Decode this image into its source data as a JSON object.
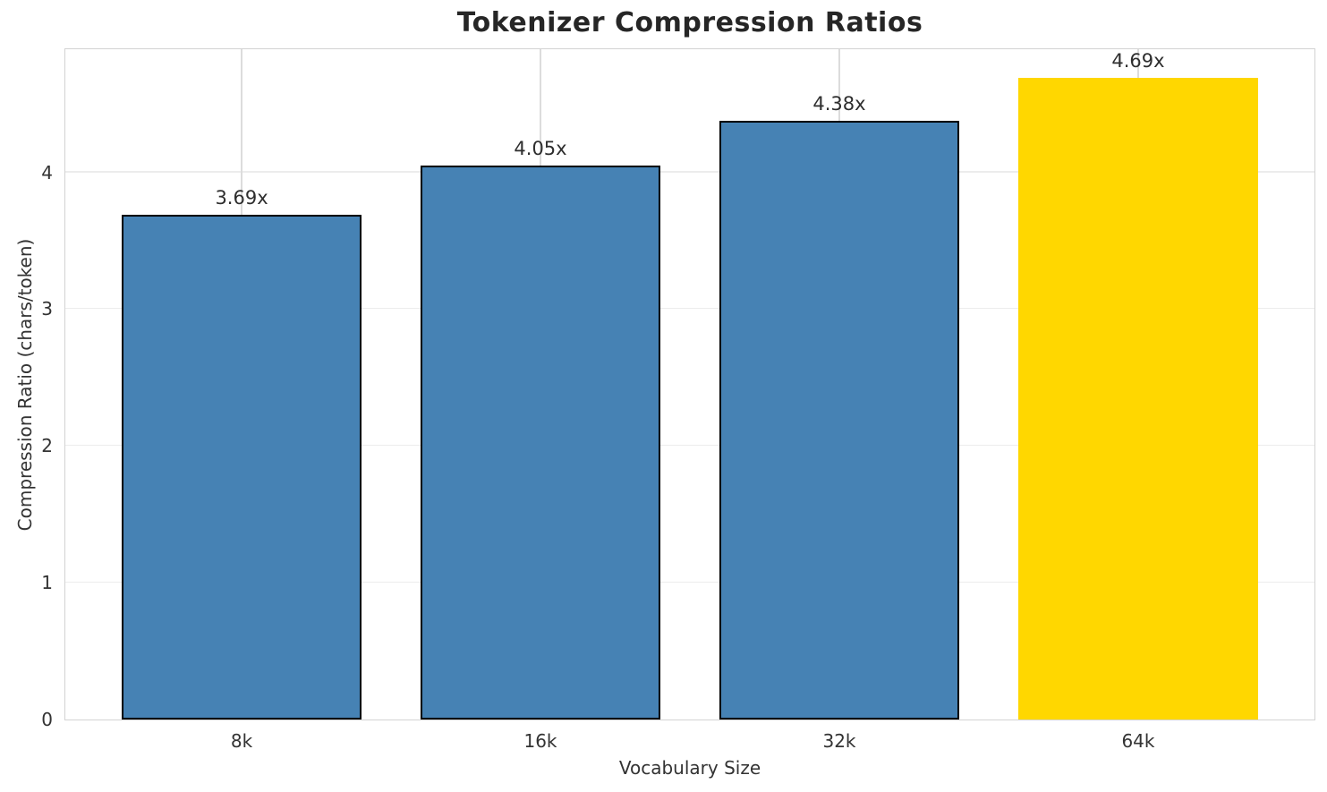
{
  "chart_data": {
    "type": "bar",
    "title": "Tokenizer Compression Ratios",
    "xlabel": "Vocabulary Size",
    "ylabel": "Compression Ratio (chars/token)",
    "categories": [
      "8k",
      "16k",
      "32k",
      "64k"
    ],
    "values": [
      3.69,
      4.05,
      4.38,
      4.69
    ],
    "bar_labels": [
      "3.69x",
      "4.05x",
      "4.38x",
      "4.69x"
    ],
    "bar_colors": [
      "#4682B4",
      "#4682B4",
      "#4682B4",
      "#FFD700"
    ],
    "bar_edge_colors": [
      "#000000",
      "#000000",
      "#000000",
      "#FFD700"
    ],
    "yticks": [
      0,
      1,
      2,
      3,
      4
    ],
    "ylim": [
      0,
      4.9
    ],
    "bar_width_fraction": 0.8,
    "grid": true,
    "legend_position": "none",
    "highlight_index": 3,
    "colors": {
      "bar_default": "#4682B4",
      "bar_highlight": "#FFD700",
      "bar_edge": "#000000",
      "grid": "#e5e5e5",
      "spine": "#d3d3d3",
      "title_text": "#262626",
      "tick_text": "#333333"
    }
  }
}
